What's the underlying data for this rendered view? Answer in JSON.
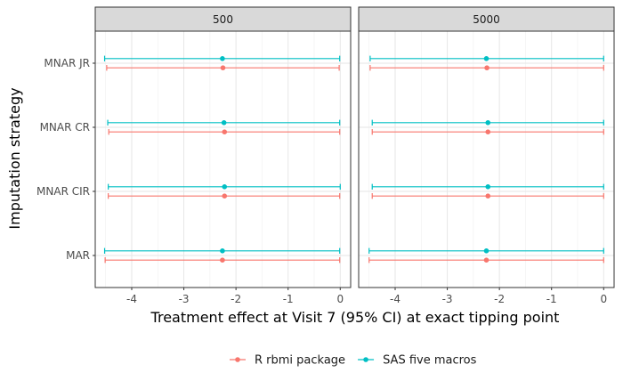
{
  "chart_data": {
    "type": "scatter",
    "xlabel": "Treatment effect at Visit 7 (95% CI) at exact tipping point",
    "ylabel": "Imputation strategy",
    "xlim": [
      -4.7,
      0.2
    ],
    "x_ticks": [
      -4,
      -3,
      -2,
      -1,
      0
    ],
    "x_tick_labels": [
      "-4",
      "-3",
      "-2",
      "-1",
      "0"
    ],
    "categories": [
      "MNAR JR",
      "MNAR CR",
      "MNAR CIR",
      "MAR"
    ],
    "facets": [
      "500",
      "5000"
    ],
    "grid": true,
    "legend_position": "bottom",
    "colors": {
      "R rbmi package": "#F8766D",
      "SAS five macros": "#00BFC4"
    },
    "series": [
      {
        "name": "R rbmi package",
        "data": {
          "500": [
            {
              "category": "MNAR JR",
              "estimate": -2.25,
              "lower": -4.48,
              "upper": -0.02
            },
            {
              "category": "MNAR CR",
              "estimate": -2.22,
              "lower": -4.44,
              "upper": -0.01
            },
            {
              "category": "MNAR CIR",
              "estimate": -2.22,
              "lower": -4.45,
              "upper": -0.01
            },
            {
              "category": "MAR",
              "estimate": -2.26,
              "lower": -4.51,
              "upper": -0.01
            }
          ],
          "5000": [
            {
              "category": "MNAR JR",
              "estimate": -2.24,
              "lower": -4.48,
              "upper": 0.0
            },
            {
              "category": "MNAR CR",
              "estimate": -2.22,
              "lower": -4.44,
              "upper": 0.0
            },
            {
              "category": "MNAR CIR",
              "estimate": -2.22,
              "lower": -4.44,
              "upper": 0.0
            },
            {
              "category": "MAR",
              "estimate": -2.25,
              "lower": -4.5,
              "upper": 0.0
            }
          ]
        }
      },
      {
        "name": "SAS five macros",
        "data": {
          "500": [
            {
              "category": "MNAR JR",
              "estimate": -2.26,
              "lower": -4.52,
              "upper": -0.01
            },
            {
              "category": "MNAR CR",
              "estimate": -2.23,
              "lower": -4.46,
              "upper": -0.01
            },
            {
              "category": "MNAR CIR",
              "estimate": -2.22,
              "lower": -4.45,
              "upper": 0.0
            },
            {
              "category": "MAR",
              "estimate": -2.26,
              "lower": -4.52,
              "upper": -0.01
            }
          ],
          "5000": [
            {
              "category": "MNAR JR",
              "estimate": -2.25,
              "lower": -4.48,
              "upper": 0.0
            },
            {
              "category": "MNAR CR",
              "estimate": -2.22,
              "lower": -4.44,
              "upper": 0.0
            },
            {
              "category": "MNAR CIR",
              "estimate": -2.22,
              "lower": -4.44,
              "upper": 0.0
            },
            {
              "category": "MAR",
              "estimate": -2.25,
              "lower": -4.5,
              "upper": 0.0
            }
          ]
        }
      }
    ]
  }
}
